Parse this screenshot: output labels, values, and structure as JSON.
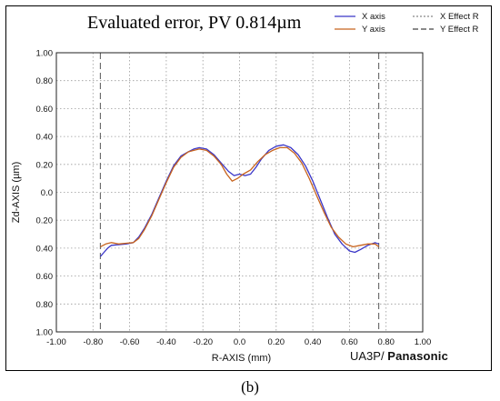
{
  "chart_data": {
    "type": "line",
    "title": "Evaluated error,   PV 0.814µm",
    "xlabel": "R-AXIS (mm)",
    "ylabel": "Zd-AXIS (µm)",
    "xlim": [
      -1.0,
      1.0
    ],
    "ylim": [
      -1.0,
      1.0
    ],
    "x_ticks": [
      "-1.00",
      "-0.80",
      "-0.60",
      "-0.40",
      "-0.20",
      "0.0",
      "0.20",
      "0.40",
      "0.60",
      "0.80",
      "1.00"
    ],
    "y_ticks": [
      "1.00",
      "0.80",
      "0.60",
      "0.40",
      "0.20",
      "0.0",
      "0.20",
      "0.40",
      "0.60",
      "0.80",
      "1.00"
    ],
    "grid": true,
    "legend_position": "top-right",
    "legend": [
      {
        "label": "X axis",
        "color": "#3a36c8",
        "style": "solid"
      },
      {
        "label": "X Effect R",
        "color": "#888888",
        "style": "dashed-fine"
      },
      {
        "label": "Y axis",
        "color": "#c8641e",
        "style": "solid"
      },
      {
        "label": "Y Effect R",
        "color": "#444444",
        "style": "dashed"
      }
    ],
    "effect_r": [
      -0.76,
      0.76
    ],
    "series": [
      {
        "name": "X axis",
        "color": "#3a36c8",
        "points": [
          [
            -0.76,
            -0.46
          ],
          [
            -0.74,
            -0.43
          ],
          [
            -0.72,
            -0.4
          ],
          [
            -0.7,
            -0.38
          ],
          [
            -0.66,
            -0.375
          ],
          [
            -0.62,
            -0.37
          ],
          [
            -0.58,
            -0.36
          ],
          [
            -0.55,
            -0.32
          ],
          [
            -0.52,
            -0.26
          ],
          [
            -0.48,
            -0.16
          ],
          [
            -0.44,
            -0.04
          ],
          [
            -0.4,
            0.08
          ],
          [
            -0.36,
            0.19
          ],
          [
            -0.32,
            0.26
          ],
          [
            -0.28,
            0.29
          ],
          [
            -0.25,
            0.31
          ],
          [
            -0.22,
            0.32
          ],
          [
            -0.18,
            0.31
          ],
          [
            -0.14,
            0.27
          ],
          [
            -0.1,
            0.21
          ],
          [
            -0.06,
            0.15
          ],
          [
            -0.03,
            0.12
          ],
          [
            0.0,
            0.13
          ],
          [
            0.03,
            0.12
          ],
          [
            0.06,
            0.13
          ],
          [
            0.09,
            0.18
          ],
          [
            0.12,
            0.24
          ],
          [
            0.16,
            0.3
          ],
          [
            0.2,
            0.33
          ],
          [
            0.24,
            0.34
          ],
          [
            0.28,
            0.32
          ],
          [
            0.32,
            0.27
          ],
          [
            0.36,
            0.19
          ],
          [
            0.4,
            0.08
          ],
          [
            0.44,
            -0.05
          ],
          [
            0.48,
            -0.18
          ],
          [
            0.52,
            -0.3
          ],
          [
            0.56,
            -0.37
          ],
          [
            0.6,
            -0.42
          ],
          [
            0.63,
            -0.43
          ],
          [
            0.66,
            -0.41
          ],
          [
            0.7,
            -0.38
          ],
          [
            0.74,
            -0.36
          ],
          [
            0.76,
            -0.37
          ]
        ]
      },
      {
        "name": "Y axis",
        "color": "#c8641e",
        "points": [
          [
            -0.76,
            -0.39
          ],
          [
            -0.73,
            -0.37
          ],
          [
            -0.7,
            -0.36
          ],
          [
            -0.66,
            -0.37
          ],
          [
            -0.62,
            -0.365
          ],
          [
            -0.58,
            -0.36
          ],
          [
            -0.55,
            -0.33
          ],
          [
            -0.52,
            -0.27
          ],
          [
            -0.48,
            -0.17
          ],
          [
            -0.44,
            -0.05
          ],
          [
            -0.4,
            0.07
          ],
          [
            -0.36,
            0.18
          ],
          [
            -0.32,
            0.25
          ],
          [
            -0.28,
            0.29
          ],
          [
            -0.25,
            0.3
          ],
          [
            -0.22,
            0.31
          ],
          [
            -0.18,
            0.3
          ],
          [
            -0.14,
            0.26
          ],
          [
            -0.1,
            0.2
          ],
          [
            -0.07,
            0.13
          ],
          [
            -0.04,
            0.08
          ],
          [
            -0.01,
            0.1
          ],
          [
            0.02,
            0.13
          ],
          [
            0.06,
            0.16
          ],
          [
            0.1,
            0.22
          ],
          [
            0.14,
            0.27
          ],
          [
            0.18,
            0.3
          ],
          [
            0.22,
            0.32
          ],
          [
            0.26,
            0.32
          ],
          [
            0.3,
            0.28
          ],
          [
            0.34,
            0.21
          ],
          [
            0.38,
            0.1
          ],
          [
            0.42,
            -0.02
          ],
          [
            0.46,
            -0.14
          ],
          [
            0.5,
            -0.25
          ],
          [
            0.54,
            -0.32
          ],
          [
            0.58,
            -0.37
          ],
          [
            0.62,
            -0.39
          ],
          [
            0.66,
            -0.38
          ],
          [
            0.7,
            -0.37
          ],
          [
            0.74,
            -0.37
          ],
          [
            0.76,
            -0.39
          ]
        ]
      }
    ]
  },
  "figure": {
    "brand_prefix": "UA3P/",
    "brand_name": "Panasonic",
    "caption": "(b)"
  }
}
